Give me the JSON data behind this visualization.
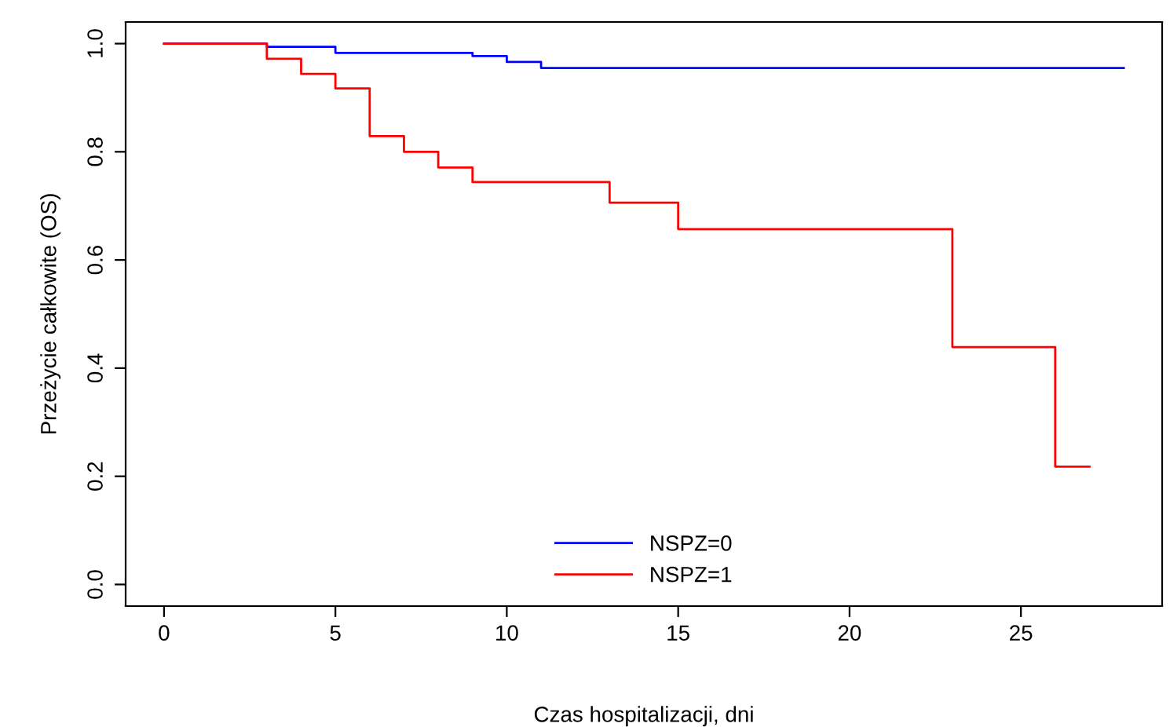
{
  "chart_data": {
    "type": "step",
    "xlabel": "Czas hospitalizacji, dni",
    "ylabel": "Przeżycie całkowite (OS)",
    "xlim": [
      -1.12,
      29.12
    ],
    "ylim": [
      -0.04,
      1.04
    ],
    "xticks": [
      0,
      5,
      10,
      15,
      20,
      25
    ],
    "yticks": [
      {
        "value": 0,
        "label": "0.0"
      },
      0.2,
      0.4,
      0.6,
      0.8,
      {
        "value": 1,
        "label": "1.0"
      }
    ],
    "grid": false,
    "legend": "bottom",
    "marker": "none",
    "line_style": "solid",
    "series": [
      {
        "name": "NSPZ=0",
        "color": "#0000ff",
        "x": [
          0,
          3,
          5,
          9,
          10,
          11,
          28
        ],
        "values": [
          1.0,
          0.994,
          0.983,
          0.977,
          0.966,
          0.955,
          0.955
        ]
      },
      {
        "name": "NSPZ=1",
        "color": "#ff0000",
        "x": [
          0,
          3,
          4,
          5,
          6,
          7,
          8,
          9,
          13,
          15,
          23,
          26,
          27
        ],
        "values": [
          1.0,
          0.972,
          0.944,
          0.917,
          0.829,
          0.8,
          0.771,
          0.744,
          0.706,
          0.657,
          0.439,
          0.218,
          0.218
        ]
      }
    ]
  }
}
